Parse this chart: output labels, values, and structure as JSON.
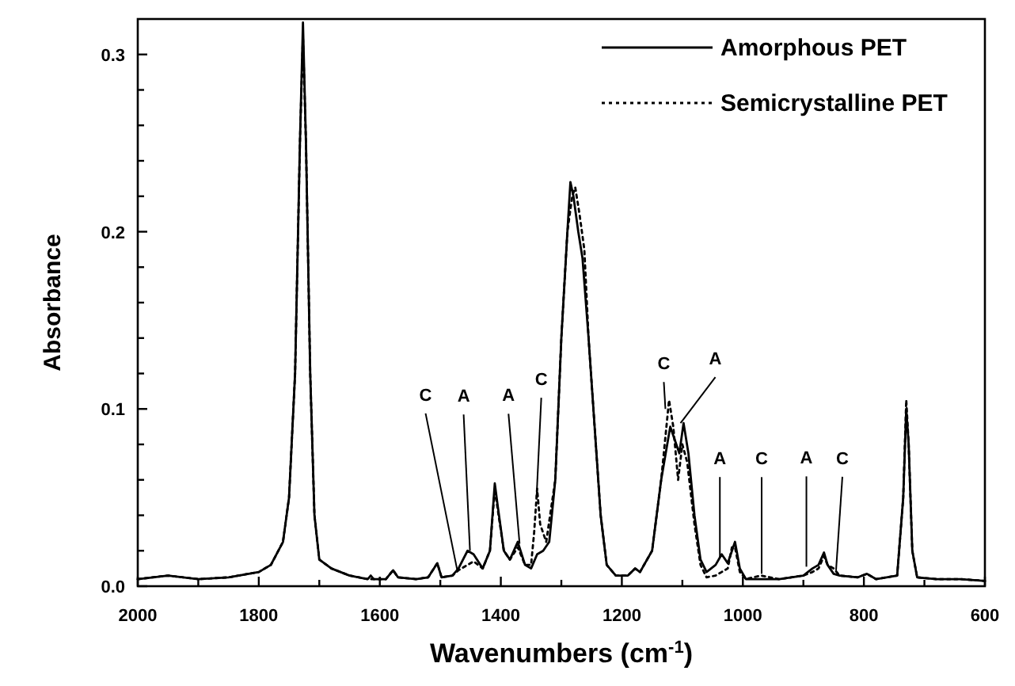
{
  "chart_data": {
    "type": "line",
    "xlabel": "Wavenumbers (cm$^{-1}$)",
    "ylabel": "Absorbance",
    "xlim": [
      2000,
      600
    ],
    "ylim": [
      0,
      0.32
    ],
    "xticks": [
      2000,
      {
        "value": 1900,
        "label": null
      },
      1800,
      {
        "value": 1700,
        "label": null
      },
      1600,
      {
        "value": 1500,
        "label": null
      },
      1400,
      {
        "value": 1300,
        "label": null
      },
      1200,
      {
        "value": 1100,
        "label": null
      },
      1000,
      {
        "value": 900,
        "label": null
      },
      800,
      {
        "value": 700,
        "label": null
      },
      600
    ],
    "yticks": [
      {
        "value": 0,
        "label": "0.0"
      },
      {
        "value": 0.02,
        "label": null
      },
      {
        "value": 0.04,
        "label": null
      },
      {
        "value": 0.06,
        "label": null
      },
      {
        "value": 0.08,
        "label": null
      },
      {
        "value": 0.1,
        "label": "0.1"
      },
      {
        "value": 0.12,
        "label": null
      },
      {
        "value": 0.14,
        "label": null
      },
      {
        "value": 0.16,
        "label": null
      },
      {
        "value": 0.18,
        "label": null
      },
      {
        "value": 0.2,
        "label": "0.2"
      },
      {
        "value": 0.22,
        "label": null
      },
      {
        "value": 0.24,
        "label": null
      },
      {
        "value": 0.26,
        "label": null
      },
      {
        "value": 0.28,
        "label": null
      },
      {
        "value": 0.3,
        "label": "0.3"
      }
    ],
    "grid": false,
    "legend": "top right",
    "series": [
      {
        "name": "Amorphous PET",
        "color": "#000000",
        "line_style": "solid",
        "x": [
          2000,
          1950,
          1900,
          1850,
          1800,
          1780,
          1760,
          1750,
          1740,
          1732,
          1727,
          1722,
          1715,
          1708,
          1700,
          1680,
          1650,
          1620,
          1615,
          1610,
          1590,
          1578,
          1570,
          1540,
          1520,
          1505,
          1498,
          1480,
          1470,
          1455,
          1445,
          1430,
          1418,
          1410,
          1405,
          1395,
          1385,
          1372,
          1360,
          1350,
          1340,
          1330,
          1320,
          1310,
          1300,
          1290,
          1285,
          1280,
          1272,
          1265,
          1255,
          1245,
          1235,
          1225,
          1210,
          1190,
          1178,
          1170,
          1150,
          1135,
          1120,
          1113,
          1105,
          1098,
          1090,
          1080,
          1070,
          1060,
          1045,
          1035,
          1025,
          1018,
          1013,
          1005,
          995,
          970,
          940,
          900,
          885,
          875,
          866,
          860,
          850,
          840,
          810,
          795,
          780,
          745,
          735,
          730,
          726,
          720,
          712,
          680,
          640,
          600
        ],
        "values": [
          0.004,
          0.006,
          0.004,
          0.005,
          0.008,
          0.012,
          0.025,
          0.05,
          0.12,
          0.25,
          0.318,
          0.25,
          0.12,
          0.04,
          0.015,
          0.01,
          0.006,
          0.004,
          0.006,
          0.004,
          0.004,
          0.009,
          0.005,
          0.004,
          0.005,
          0.013,
          0.005,
          0.006,
          0.01,
          0.02,
          0.018,
          0.01,
          0.02,
          0.058,
          0.045,
          0.02,
          0.015,
          0.025,
          0.012,
          0.01,
          0.018,
          0.02,
          0.025,
          0.06,
          0.14,
          0.2,
          0.228,
          0.22,
          0.2,
          0.185,
          0.14,
          0.09,
          0.04,
          0.012,
          0.006,
          0.006,
          0.01,
          0.008,
          0.02,
          0.06,
          0.09,
          0.083,
          0.075,
          0.092,
          0.075,
          0.04,
          0.015,
          0.008,
          0.012,
          0.018,
          0.013,
          0.02,
          0.025,
          0.01,
          0.004,
          0.004,
          0.004,
          0.006,
          0.01,
          0.012,
          0.019,
          0.012,
          0.007,
          0.006,
          0.005,
          0.007,
          0.004,
          0.006,
          0.05,
          0.1,
          0.08,
          0.02,
          0.005,
          0.004,
          0.004,
          0.003
        ]
      },
      {
        "name": "Semicrystalline PET",
        "color": "#000000",
        "line_style": "dotted",
        "x": [
          2000,
          1950,
          1900,
          1850,
          1800,
          1780,
          1760,
          1750,
          1740,
          1732,
          1727,
          1722,
          1715,
          1708,
          1700,
          1680,
          1650,
          1620,
          1590,
          1578,
          1570,
          1540,
          1520,
          1505,
          1498,
          1480,
          1470,
          1455,
          1445,
          1430,
          1418,
          1410,
          1405,
          1395,
          1385,
          1372,
          1360,
          1350,
          1345,
          1340,
          1335,
          1325,
          1310,
          1300,
          1290,
          1282,
          1277,
          1270,
          1262,
          1255,
          1245,
          1235,
          1225,
          1210,
          1190,
          1178,
          1170,
          1150,
          1135,
          1122,
          1115,
          1107,
          1100,
          1092,
          1080,
          1070,
          1060,
          1045,
          1035,
          1025,
          1018,
          1013,
          1005,
          995,
          970,
          940,
          900,
          885,
          875,
          866,
          860,
          850,
          840,
          810,
          795,
          780,
          745,
          735,
          730,
          726,
          720,
          712,
          680,
          640,
          600
        ],
        "values": [
          0.004,
          0.006,
          0.004,
          0.005,
          0.008,
          0.012,
          0.025,
          0.05,
          0.12,
          0.25,
          0.31,
          0.25,
          0.12,
          0.04,
          0.015,
          0.01,
          0.006,
          0.004,
          0.004,
          0.009,
          0.005,
          0.004,
          0.005,
          0.013,
          0.005,
          0.006,
          0.009,
          0.012,
          0.014,
          0.01,
          0.02,
          0.055,
          0.043,
          0.02,
          0.015,
          0.022,
          0.012,
          0.012,
          0.03,
          0.055,
          0.035,
          0.025,
          0.06,
          0.14,
          0.2,
          0.22,
          0.225,
          0.21,
          0.19,
          0.14,
          0.09,
          0.04,
          0.012,
          0.006,
          0.006,
          0.01,
          0.008,
          0.02,
          0.06,
          0.105,
          0.09,
          0.06,
          0.08,
          0.07,
          0.035,
          0.012,
          0.005,
          0.006,
          0.008,
          0.01,
          0.022,
          0.022,
          0.008,
          0.004,
          0.006,
          0.004,
          0.006,
          0.008,
          0.01,
          0.017,
          0.012,
          0.01,
          0.006,
          0.005,
          0.007,
          0.004,
          0.006,
          0.05,
          0.105,
          0.08,
          0.02,
          0.005,
          0.004,
          0.004,
          0.003
        ]
      }
    ],
    "annotations": [
      {
        "text": "C",
        "x": 1472,
        "y": 0.009
      },
      {
        "text": "A",
        "x": 1451,
        "y": 0.02
      },
      {
        "text": "A",
        "x": 1369,
        "y": 0.024
      },
      {
        "text": "C",
        "x": 1341,
        "y": 0.05
      },
      {
        "text": "C",
        "x": 1128,
        "y": 0.1
      },
      {
        "text": "A",
        "x": 1103,
        "y": 0.092
      },
      {
        "text": "A",
        "x": 1038,
        "y": 0.016
      },
      {
        "text": "C",
        "x": 969,
        "y": 0.007
      },
      {
        "text": "A",
        "x": 895,
        "y": 0.011
      },
      {
        "text": "C",
        "x": 846,
        "y": 0.009
      }
    ]
  }
}
